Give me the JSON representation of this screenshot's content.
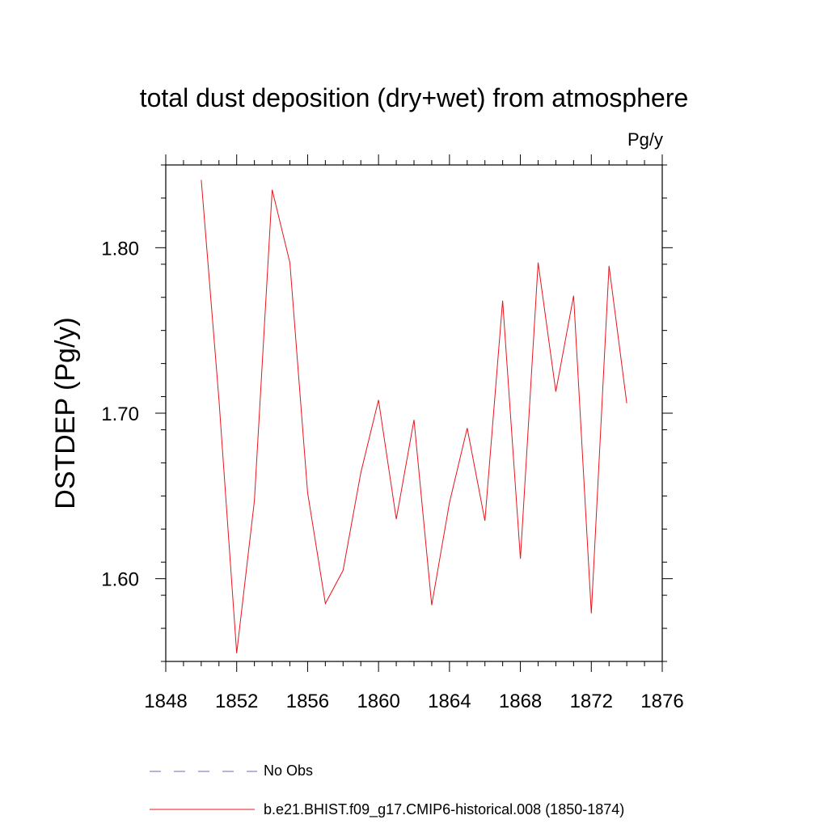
{
  "chart_data": {
    "type": "line",
    "title": "total dust deposition (dry+wet) from atmosphere",
    "units_label": "Pg/y",
    "ylabel": "DSTDEP  (Pg/y)",
    "xlabel": "",
    "xlim": [
      1848,
      1876
    ],
    "ylim": [
      1.55,
      1.85
    ],
    "x_ticks": [
      1848,
      1852,
      1856,
      1860,
      1864,
      1868,
      1872,
      1876
    ],
    "x_tick_labels": [
      "1848",
      "1852",
      "1856",
      "1860",
      "1864",
      "1868",
      "1872",
      "1876"
    ],
    "y_ticks": [
      1.6,
      1.7,
      1.8
    ],
    "y_tick_labels": [
      "1.60",
      "1.70",
      "1.80"
    ],
    "x_minor_step": 1,
    "y_minor_step": 0.02,
    "legend_position": "bottom",
    "series": [
      {
        "name": "b.e21.BHIST.f09_g17.CMIP6-historical.008 (1850-1874)",
        "color": "#e8141c",
        "style": "solid",
        "x": [
          1850,
          1851,
          1852,
          1853,
          1854,
          1855,
          1856,
          1857,
          1858,
          1859,
          1860,
          1861,
          1862,
          1863,
          1864,
          1865,
          1866,
          1867,
          1868,
          1869,
          1870,
          1871,
          1872,
          1873,
          1874
        ],
        "values": [
          1.841,
          1.708,
          1.555,
          1.647,
          1.835,
          1.791,
          1.652,
          1.585,
          1.605,
          1.664,
          1.708,
          1.636,
          1.696,
          1.584,
          1.646,
          1.691,
          1.635,
          1.768,
          1.612,
          1.791,
          1.713,
          1.771,
          1.579,
          1.789,
          1.706
        ]
      }
    ],
    "legend": [
      {
        "label": "No Obs",
        "color": "#6a6ab8",
        "style": "dashed"
      },
      {
        "label": "b.e21.BHIST.f09_g17.CMIP6-historical.008 (1850-1874)",
        "color": "#e8141c",
        "style": "solid"
      }
    ]
  }
}
